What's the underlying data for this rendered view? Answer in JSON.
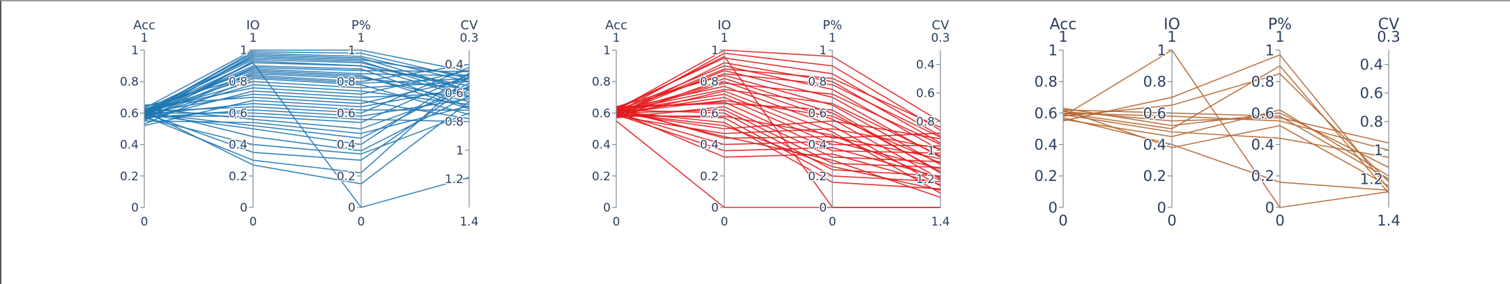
{
  "chart_data": [
    {
      "type": "parallel_coordinates",
      "color": "#1f77b4",
      "font_px": 17,
      "axes": [
        {
          "label": "Acc",
          "range": [
            0,
            1
          ],
          "ticks": [
            0,
            0.2,
            0.4,
            0.6,
            0.8,
            1
          ],
          "tick_labels": [
            "0",
            "0.2",
            "0.4",
            "0.6",
            "0.8",
            "1"
          ],
          "range_labels": [
            "1",
            "0"
          ]
        },
        {
          "label": "IO",
          "range": [
            0,
            1
          ],
          "ticks": [
            0,
            0.2,
            0.4,
            0.6,
            0.8,
            1
          ],
          "tick_labels": [
            "0",
            "0.2",
            "0.4",
            "0.6",
            "0.8",
            "1"
          ],
          "range_labels": [
            "1",
            "0"
          ]
        },
        {
          "label": "P%",
          "range": [
            0,
            1
          ],
          "ticks": [
            0,
            0.2,
            0.4,
            0.6,
            0.8,
            1
          ],
          "tick_labels": [
            "0",
            "0.2",
            "0.4",
            "0.6",
            "0.8",
            "1"
          ],
          "range_labels": [
            "1",
            "0"
          ]
        },
        {
          "label": "CV",
          "range": [
            1.4,
            0.3
          ],
          "ticks": [
            0.4,
            0.6,
            0.8,
            1,
            1.2
          ],
          "tick_labels": [
            "0.4",
            "0.6",
            "0.8",
            "1",
            "1.2"
          ],
          "range_labels": [
            "0.3",
            "1.4"
          ]
        }
      ],
      "lines": [
        [
          0.63,
          1.0,
          1.0,
          0.45
        ],
        [
          0.6,
          0.99,
          0.98,
          0.5
        ],
        [
          0.58,
          0.97,
          0.95,
          0.58
        ],
        [
          0.62,
          0.95,
          0.93,
          0.62
        ],
        [
          0.55,
          0.93,
          0.9,
          0.55
        ],
        [
          0.59,
          0.9,
          0.88,
          0.7
        ],
        [
          0.61,
          0.88,
          0.85,
          0.48
        ],
        [
          0.57,
          0.86,
          0.83,
          0.66
        ],
        [
          0.64,
          0.84,
          0.8,
          0.4
        ],
        [
          0.53,
          0.82,
          0.78,
          0.75
        ],
        [
          0.6,
          0.8,
          0.76,
          0.52
        ],
        [
          0.58,
          0.78,
          0.74,
          0.68
        ],
        [
          0.62,
          0.76,
          0.72,
          0.44
        ],
        [
          0.56,
          0.74,
          0.7,
          0.6
        ],
        [
          0.6,
          0.72,
          0.68,
          0.78
        ],
        [
          0.65,
          0.7,
          0.66,
          0.5
        ],
        [
          0.52,
          0.68,
          0.64,
          0.56
        ],
        [
          0.59,
          0.66,
          0.62,
          0.72
        ],
        [
          0.61,
          0.64,
          0.6,
          0.42
        ],
        [
          0.57,
          0.62,
          0.58,
          0.64
        ],
        [
          0.6,
          0.6,
          0.56,
          0.8
        ],
        [
          0.58,
          0.58,
          0.54,
          0.47
        ],
        [
          0.63,
          0.56,
          0.5,
          0.58
        ],
        [
          0.55,
          0.54,
          0.47,
          0.69
        ],
        [
          0.6,
          0.52,
          0.44,
          0.53
        ],
        [
          0.59,
          0.5,
          0.4,
          0.46
        ],
        [
          0.62,
          0.45,
          0.36,
          0.62
        ],
        [
          0.57,
          0.4,
          0.34,
          0.74
        ],
        [
          0.6,
          0.35,
          0.3,
          0.55
        ],
        [
          0.58,
          0.3,
          0.22,
          0.48
        ],
        [
          0.61,
          0.27,
          0.15,
          0.66
        ],
        [
          0.58,
          0.92,
          0.0,
          1.19
        ],
        [
          0.6,
          0.98,
          0.96,
          0.52
        ],
        [
          0.59,
          0.96,
          0.94,
          0.48
        ],
        [
          0.61,
          0.94,
          0.92,
          0.58
        ],
        [
          0.6,
          0.92,
          0.9,
          0.63
        ],
        [
          0.58,
          0.89,
          0.87,
          0.45
        ],
        [
          0.62,
          0.87,
          0.84,
          0.71
        ],
        [
          0.56,
          0.85,
          0.82,
          0.57
        ],
        [
          0.6,
          0.83,
          0.79,
          0.5
        ]
      ]
    },
    {
      "type": "parallel_coordinates",
      "color": "#e31a1c",
      "font_px": 17,
      "axes": [
        {
          "label": "Acc",
          "range": [
            0,
            1
          ],
          "ticks": [
            0,
            0.2,
            0.4,
            0.6,
            0.8,
            1
          ],
          "tick_labels": [
            "0",
            "0.2",
            "0.4",
            "0.6",
            "0.8",
            "1"
          ],
          "range_labels": [
            "1",
            "0"
          ]
        },
        {
          "label": "IO",
          "range": [
            0,
            1
          ],
          "ticks": [
            0,
            0.2,
            0.4,
            0.6,
            0.8,
            1
          ],
          "tick_labels": [
            "0",
            "0.2",
            "0.4",
            "0.6",
            "0.8",
            "1"
          ],
          "range_labels": [
            "1",
            "0"
          ]
        },
        {
          "label": "P%",
          "range": [
            0,
            1
          ],
          "ticks": [
            0,
            0.2,
            0.4,
            0.6,
            0.8,
            1
          ],
          "tick_labels": [
            "0",
            "0.2",
            "0.4",
            "0.6",
            "0.8",
            "1"
          ],
          "range_labels": [
            "1",
            "0"
          ]
        },
        {
          "label": "CV",
          "range": [
            1.4,
            0.3
          ],
          "ticks": [
            0.4,
            0.6,
            0.8,
            1,
            1.2
          ],
          "tick_labels": [
            "0.4",
            "0.6",
            "0.8",
            "1",
            "1.2"
          ],
          "range_labels": [
            "0.3",
            "1.4"
          ]
        }
      ],
      "lines": [
        [
          0.62,
          1.0,
          0.96,
          0.8
        ],
        [
          0.6,
          0.98,
          0.9,
          0.86
        ],
        [
          0.63,
          0.95,
          0.85,
          0.9
        ],
        [
          0.58,
          0.92,
          0.8,
          0.95
        ],
        [
          0.61,
          0.9,
          0.75,
          1.0
        ],
        [
          0.59,
          0.87,
          0.7,
          1.05
        ],
        [
          0.64,
          0.84,
          0.65,
          1.1
        ],
        [
          0.57,
          0.82,
          0.6,
          1.15
        ],
        [
          0.6,
          0.8,
          0.56,
          1.2
        ],
        [
          0.62,
          0.77,
          0.52,
          1.25
        ],
        [
          0.58,
          0.74,
          0.48,
          1.3
        ],
        [
          0.61,
          0.72,
          0.44,
          0.88
        ],
        [
          0.6,
          0.7,
          0.4,
          0.97
        ],
        [
          0.63,
          0.67,
          0.36,
          1.02
        ],
        [
          0.57,
          0.64,
          0.32,
          1.08
        ],
        [
          0.6,
          0.62,
          0.28,
          1.12
        ],
        [
          0.62,
          0.6,
          0.24,
          1.18
        ],
        [
          0.59,
          0.57,
          0.2,
          1.22
        ],
        [
          0.61,
          0.54,
          0.16,
          1.27
        ],
        [
          0.6,
          0.5,
          0.55,
          0.92
        ],
        [
          0.58,
          0.47,
          0.5,
          0.99
        ],
        [
          0.63,
          0.44,
          0.45,
          1.06
        ],
        [
          0.6,
          0.4,
          0.42,
          1.13
        ],
        [
          0.59,
          0.36,
          0.38,
          1.19
        ],
        [
          0.61,
          0.32,
          0.34,
          1.24
        ],
        [
          0.62,
          0.96,
          0.0,
          1.4
        ],
        [
          0.55,
          0.0,
          0.0,
          1.4
        ],
        [
          0.6,
          0.88,
          0.82,
          0.84
        ],
        [
          0.62,
          0.85,
          0.78,
          0.91
        ],
        [
          0.59,
          0.79,
          0.72,
          0.96
        ],
        [
          0.61,
          0.75,
          0.66,
          1.04
        ],
        [
          0.6,
          0.68,
          0.58,
          1.09
        ],
        [
          0.64,
          0.66,
          0.62,
          1.16
        ],
        [
          0.58,
          0.58,
          0.46,
          1.21
        ],
        [
          0.6,
          0.52,
          0.26,
          1.28
        ],
        [
          0.62,
          0.45,
          0.3,
          1.33
        ]
      ]
    },
    {
      "type": "parallel_coordinates",
      "color": "#b5652e",
      "font_px": 21,
      "axes": [
        {
          "label": "Acc",
          "range": [
            0,
            1
          ],
          "ticks": [
            0,
            0.2,
            0.4,
            0.6,
            0.8,
            1
          ],
          "tick_labels": [
            "0",
            "0.2",
            "0.4",
            "0.6",
            "0.8",
            "1"
          ],
          "range_labels": [
            "1",
            "0"
          ]
        },
        {
          "label": "IO",
          "range": [
            0,
            1
          ],
          "ticks": [
            0,
            0.2,
            0.4,
            0.6,
            0.8,
            1
          ],
          "tick_labels": [
            "0",
            "0.2",
            "0.4",
            "0.6",
            "0.8",
            "1"
          ],
          "range_labels": [
            "1",
            "0"
          ]
        },
        {
          "label": "P%",
          "range": [
            0,
            1
          ],
          "ticks": [
            0,
            0.2,
            0.4,
            0.6,
            0.8,
            1
          ],
          "tick_labels": [
            "0",
            "0.2",
            "0.4",
            "0.6",
            "0.8",
            "1"
          ],
          "range_labels": [
            "1",
            "0"
          ]
        },
        {
          "label": "CV",
          "range": [
            1.4,
            0.3
          ],
          "ticks": [
            0.4,
            0.6,
            0.8,
            1,
            1.2
          ],
          "tick_labels": [
            "0.4",
            "0.6",
            "0.8",
            "1",
            "1.2"
          ],
          "range_labels": [
            "0.3",
            "1.4"
          ]
        }
      ],
      "lines": [
        [
          0.62,
          0.6,
          0.58,
          1.2
        ],
        [
          0.58,
          1.0,
          0.0,
          1.29
        ],
        [
          0.55,
          0.7,
          0.97,
          1.27
        ],
        [
          0.6,
          0.5,
          0.9,
          1.3
        ],
        [
          0.57,
          0.4,
          0.16,
          1.28
        ],
        [
          0.61,
          0.55,
          0.57,
          0.95
        ],
        [
          0.59,
          0.48,
          0.44,
          1.05
        ],
        [
          0.63,
          0.52,
          0.6,
          1.12
        ],
        [
          0.56,
          0.45,
          0.62,
          1.18
        ],
        [
          0.6,
          0.58,
          0.55,
          1.0
        ],
        [
          0.62,
          0.38,
          0.52,
          1.25
        ],
        [
          0.58,
          0.65,
          0.85,
          1.22
        ]
      ]
    }
  ]
}
